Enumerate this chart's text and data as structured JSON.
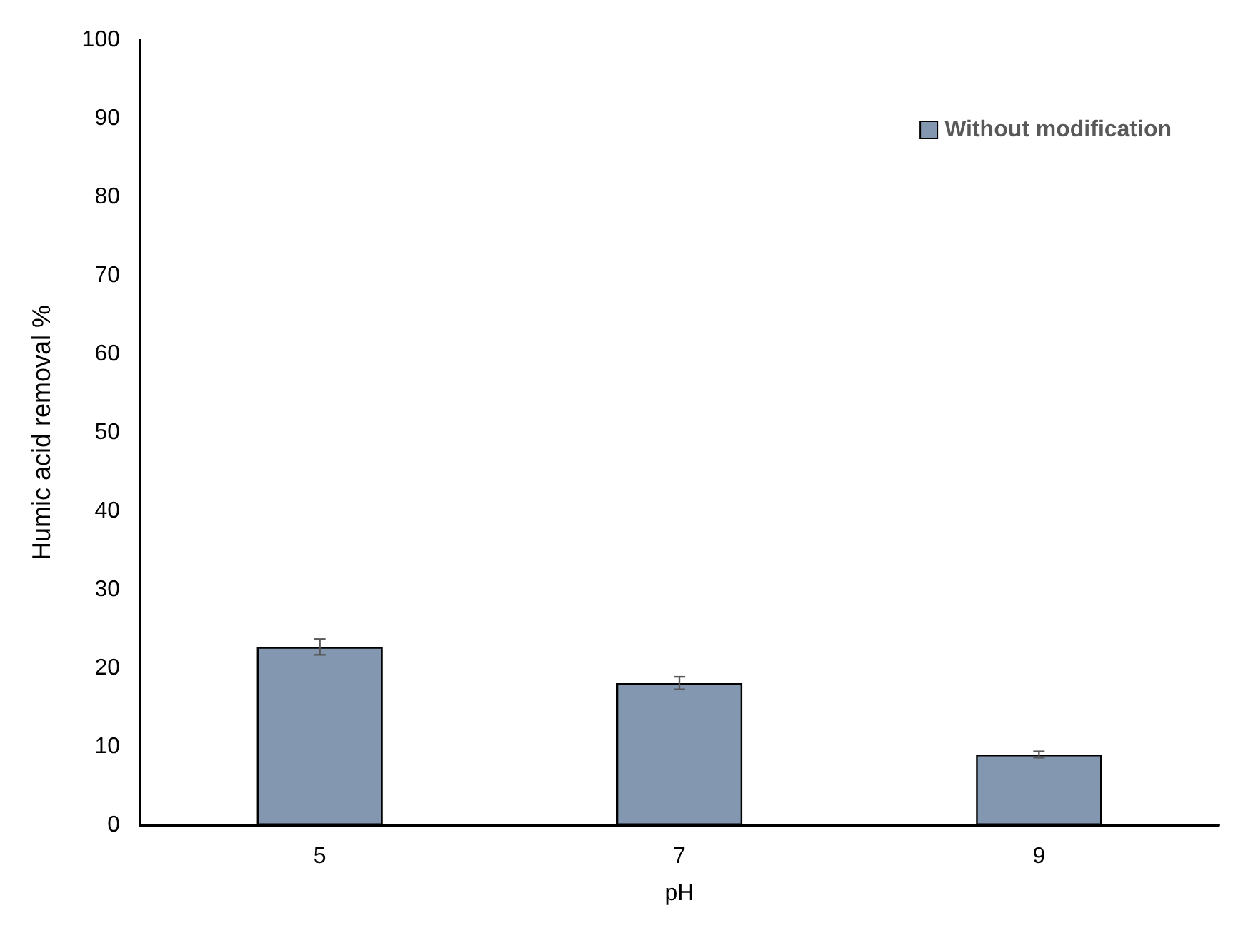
{
  "chart_data": {
    "type": "bar",
    "xlabel": "pH",
    "ylabel": "Humic acid removal %",
    "categories": [
      "5",
      "7",
      "9"
    ],
    "series": [
      {
        "name": "Without modification",
        "color": "#8497b0",
        "values": [
          22.7,
          18.1,
          9.0
        ],
        "errors": [
          1.0,
          0.8,
          0.4
        ]
      }
    ],
    "ylim": [
      0,
      100
    ],
    "yticks": [
      0,
      10,
      20,
      30,
      40,
      50,
      60,
      70,
      80,
      90,
      100
    ],
    "grid": false,
    "legend": "top right"
  }
}
